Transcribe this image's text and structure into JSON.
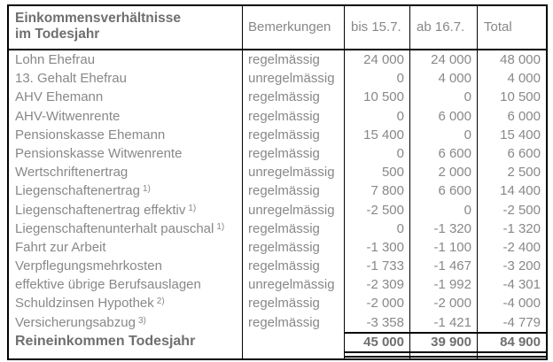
{
  "colors": {
    "border": "#000000",
    "text_regular": "#888888",
    "text_bold": "#6f6f6f",
    "background": "#ffffff"
  },
  "table": {
    "header": {
      "col1_line1": "Einkommensverhältnisse",
      "col1_line2": "im Todesjahr",
      "col2": "Bemerkungen",
      "col3": "bis 15.7.",
      "col4": "ab 16.7.",
      "col5": "Total"
    },
    "rows": [
      {
        "label": "Lohn Ehefrau",
        "sup": "",
        "bemerkung": "regelmässig",
        "bis": "24 000",
        "ab": "24 000",
        "total": "48 000"
      },
      {
        "label": "13. Gehalt Ehefrau",
        "sup": "",
        "bemerkung": "unregelmässig",
        "bis": "0",
        "ab": "4 000",
        "total": "4 000"
      },
      {
        "label": "AHV Ehemann",
        "sup": "",
        "bemerkung": "regelmässig",
        "bis": "10 500",
        "ab": "0",
        "total": "10 500"
      },
      {
        "label": "AHV-Witwenrente",
        "sup": "",
        "bemerkung": "regelmässig",
        "bis": "0",
        "ab": "6 000",
        "total": "6 000"
      },
      {
        "label": "Pensionskasse Ehemann",
        "sup": "",
        "bemerkung": "regelmässig",
        "bis": "15 400",
        "ab": "0",
        "total": "15 400"
      },
      {
        "label": "Pensionskasse Witwenrente",
        "sup": "",
        "bemerkung": "regelmässig",
        "bis": "0",
        "ab": "6 600",
        "total": "6 600"
      },
      {
        "label": "Wertschriftenertrag",
        "sup": "",
        "bemerkung": "unregelmässig",
        "bis": "500",
        "ab": "2 000",
        "total": "2 500"
      },
      {
        "label": "Liegenschaftenertrag",
        "sup": "1)",
        "bemerkung": "regelmässig",
        "bis": "7 800",
        "ab": "6 600",
        "total": "14 400"
      },
      {
        "label": "Liegenschaftenertrag effektiv",
        "sup": "1)",
        "bemerkung": "unregelmässig",
        "bis": "-2 500",
        "ab": "0",
        "total": "-2 500"
      },
      {
        "label": "Liegenschaftenunterhalt pauschal",
        "sup": "1)",
        "bemerkung": "regelmässig",
        "bis": "0",
        "ab": "-1 320",
        "total": "-1 320"
      },
      {
        "label": "Fahrt zur Arbeit",
        "sup": "",
        "bemerkung": "regelmässig",
        "bis": "-1 300",
        "ab": "-1 100",
        "total": "-2 400"
      },
      {
        "label": "Verpflegungsmehrkosten",
        "sup": "",
        "bemerkung": "regelmässig",
        "bis": "-1 733",
        "ab": "-1 467",
        "total": "-3 200"
      },
      {
        "label": "effektive übrige Berufsauslagen",
        "sup": "",
        "bemerkung": "unregelmässig",
        "bis": "-2 309",
        "ab": "-1 992",
        "total": "-4 301"
      },
      {
        "label": "Schuldzinsen Hypothek",
        "sup": "2)",
        "bemerkung": "regelmässig",
        "bis": "-2 000",
        "ab": "-2 000",
        "total": "-4 000"
      },
      {
        "label": "Versicherungsabzug",
        "sup": "3)",
        "bemerkung": "regelmässig",
        "bis": "-3 358",
        "ab": "-1 421",
        "total": "-4 779"
      }
    ],
    "total_row": {
      "label": "Reineinkommen Todesjahr",
      "bemerkung": "",
      "bis": "45 000",
      "ab": "39 900",
      "total": "84 900"
    }
  }
}
